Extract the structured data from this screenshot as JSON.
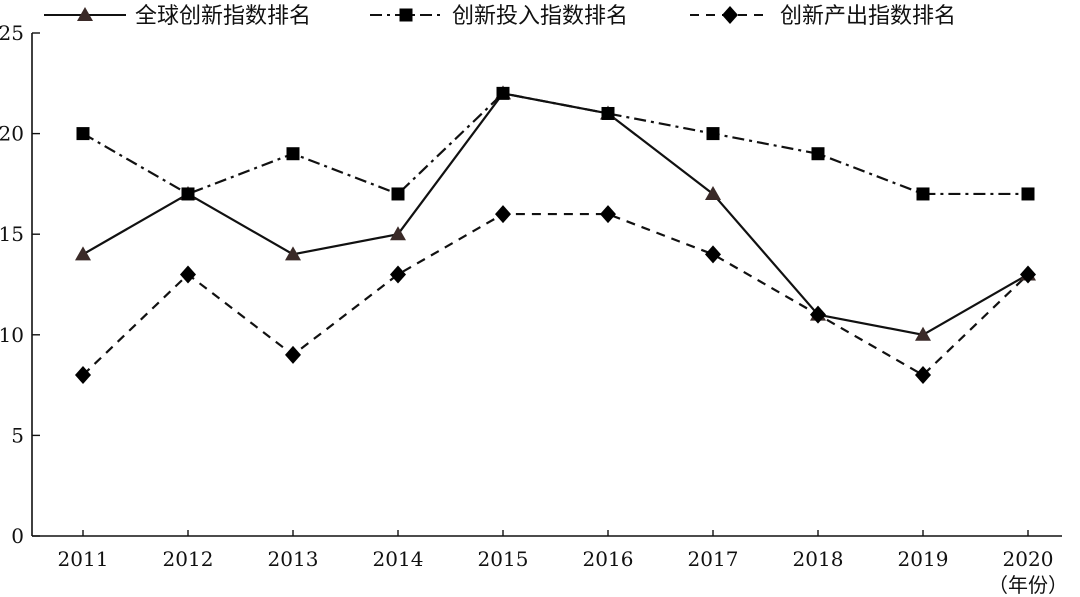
{
  "chart_data": {
    "type": "line",
    "categories": [
      "2011",
      "2012",
      "2013",
      "2014",
      "2015",
      "2016",
      "2017",
      "2018",
      "2019",
      "2020"
    ],
    "x_unit_label": "（年份）",
    "ylim": [
      0,
      25
    ],
    "yticks": [
      0,
      5,
      10,
      15,
      20,
      25
    ],
    "grid": false,
    "legend_position": "top",
    "series": [
      {
        "name": "全球创新指数排名",
        "values": [
          14,
          17,
          14,
          15,
          22,
          21,
          17,
          11,
          10,
          13
        ],
        "marker": "triangle",
        "line_style": "solid",
        "color": "#111111",
        "marker_color": "#3a2a28"
      },
      {
        "name": "创新投入指数排名",
        "values": [
          20,
          17,
          19,
          17,
          22,
          21,
          20,
          19,
          17,
          17
        ],
        "marker": "square",
        "line_style": "dash-dot",
        "color": "#111111",
        "marker_color": "#000000"
      },
      {
        "name": "创新产出指数排名",
        "values": [
          8,
          13,
          9,
          13,
          16,
          16,
          14,
          11,
          8,
          13
        ],
        "marker": "diamond",
        "line_style": "dashed",
        "color": "#111111",
        "marker_color": "#000000"
      }
    ]
  }
}
